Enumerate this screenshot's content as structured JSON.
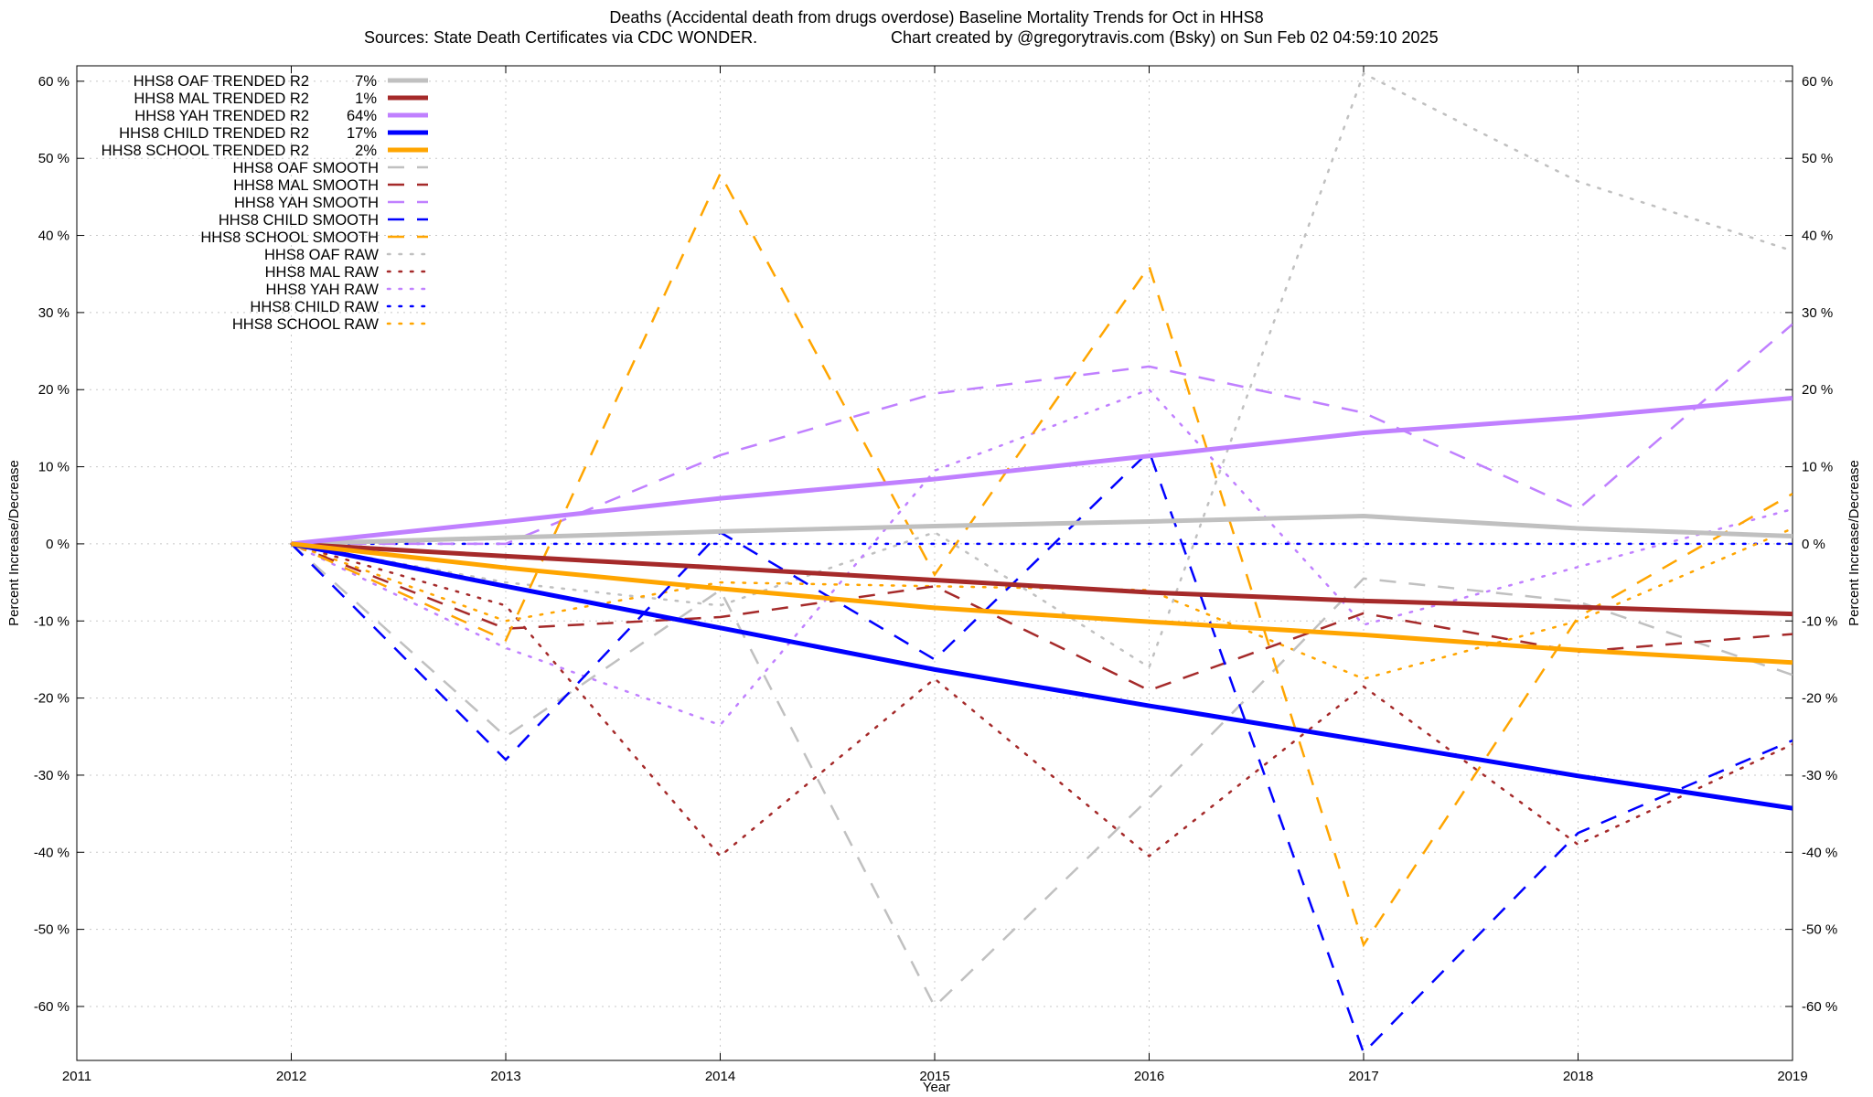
{
  "chart_data": {
    "type": "line",
    "title": "Deaths (Accidental death from drugs overdose)  Baseline Mortality Trends for Oct in HHS8",
    "subtitle_left": "Sources: State Death Certificates via CDC WONDER.",
    "subtitle_right": "Chart created by @gregorytravis.com (Bsky) on Sun Feb 02 04:59:10 2025",
    "xlabel": "Year",
    "ylabel_left": "Percent Increase/Decrease",
    "ylabel_right": "Percent Increase/Decrease",
    "xlim": [
      2011,
      2019
    ],
    "ylim": [
      -67,
      62
    ],
    "x_ticks": [
      "2011",
      "2012",
      "2013",
      "2014",
      "2015",
      "2016",
      "2017",
      "2018",
      "2019"
    ],
    "y_ticks": [
      {
        "v": 60,
        "label": "60 %"
      },
      {
        "v": 50,
        "label": "50 %"
      },
      {
        "v": 40,
        "label": "40 %"
      },
      {
        "v": 30,
        "label": "30 %"
      },
      {
        "v": 20,
        "label": "20 %"
      },
      {
        "v": 10,
        "label": "10 %"
      },
      {
        "v": 0,
        "label": "0 %"
      },
      {
        "v": -10,
        "label": "-10 %"
      },
      {
        "v": -20,
        "label": "-20 %"
      },
      {
        "v": -30,
        "label": "-30 %"
      },
      {
        "v": -40,
        "label": "-40 %"
      },
      {
        "v": -50,
        "label": "-50 %"
      },
      {
        "v": -60,
        "label": "-60 %"
      }
    ],
    "grid": true,
    "legend_position": "top-left",
    "x": [
      2012,
      2013,
      2014,
      2015,
      2016,
      2017,
      2018,
      2019
    ],
    "series": [
      {
        "name": "HHS8 OAF TRENDED R2",
        "r2": "7%",
        "style": "trend",
        "color": "#c0c0c0",
        "values": [
          0,
          0.8,
          1.6,
          2.3,
          2.9,
          3.6,
          2.0,
          1.0
        ]
      },
      {
        "name": "HHS8 MAL TRENDED R2",
        "r2": "1%",
        "style": "trend",
        "color": "#a52a2a",
        "values": [
          0,
          -1.6,
          -3.1,
          -4.7,
          -6.3,
          -7.4,
          -8.2,
          -9.1
        ]
      },
      {
        "name": "HHS8 YAH TRENDED R2",
        "r2": "64%",
        "style": "trend",
        "color": "#c080ff",
        "values": [
          0,
          2.9,
          5.9,
          8.4,
          11.4,
          14.4,
          16.4,
          18.9
        ]
      },
      {
        "name": "HHS8 CHILD TRENDED R2",
        "r2": "17%",
        "style": "trend",
        "color": "#0000ff",
        "values": [
          0,
          -5.5,
          -10.9,
          -16.3,
          -21.0,
          -25.5,
          -30.1,
          -34.3
        ]
      },
      {
        "name": "HHS8 SCHOOL TRENDED R2",
        "r2": "2%",
        "style": "trend",
        "color": "#ffa500",
        "values": [
          0,
          -3.1,
          -5.8,
          -8.3,
          -10.1,
          -11.8,
          -13.8,
          -15.4
        ]
      },
      {
        "name": "HHS8 OAF SMOOTH",
        "style": "smooth",
        "color": "#c0c0c0",
        "values": [
          0,
          -25,
          -6,
          -60,
          -33,
          -4.5,
          -7.5,
          -17
        ]
      },
      {
        "name": "HHS8 MAL SMOOTH",
        "style": "smooth",
        "color": "#a52a2a",
        "values": [
          0,
          -11,
          -9.5,
          -5.5,
          -19,
          -9,
          -14,
          -11.7
        ]
      },
      {
        "name": "HHS8 YAH SMOOTH",
        "style": "smooth",
        "color": "#c080ff",
        "values": [
          0,
          0,
          11.5,
          19.5,
          23,
          17,
          4.5,
          28.5
        ]
      },
      {
        "name": "HHS8 CHILD SMOOTH",
        "style": "smooth",
        "color": "#0000ff",
        "values": [
          0,
          -28,
          1.5,
          -15,
          12,
          -66,
          -37.5,
          -25.5
        ]
      },
      {
        "name": "HHS8 SCHOOL SMOOTH",
        "style": "smooth",
        "color": "#ffa500",
        "values": [
          0,
          -12.5,
          48,
          -4,
          36,
          -52,
          -9.5,
          6.5
        ]
      },
      {
        "name": "HHS8 OAF RAW",
        "style": "raw",
        "color": "#c0c0c0",
        "values": [
          0,
          -5,
          -8,
          1.5,
          -16,
          61,
          47,
          38
        ]
      },
      {
        "name": "HHS8 MAL RAW",
        "style": "raw",
        "color": "#a52a2a",
        "values": [
          0,
          -8,
          -40.5,
          -17.5,
          -40.5,
          -18.5,
          -39,
          -26
        ]
      },
      {
        "name": "HHS8 YAH RAW",
        "style": "raw",
        "color": "#c080ff",
        "values": [
          0,
          -13.5,
          -23.5,
          9.5,
          20,
          -10.5,
          -3,
          4.5
        ]
      },
      {
        "name": "HHS8 CHILD RAW",
        "style": "raw",
        "color": "#0000ff",
        "values": [
          0,
          0,
          0,
          0,
          0,
          0,
          0,
          0
        ]
      },
      {
        "name": "HHS8 SCHOOL RAW",
        "style": "raw",
        "color": "#ffa500",
        "values": [
          0,
          -10,
          -5,
          -5.5,
          -6,
          -17.5,
          -10,
          2
        ]
      }
    ]
  }
}
